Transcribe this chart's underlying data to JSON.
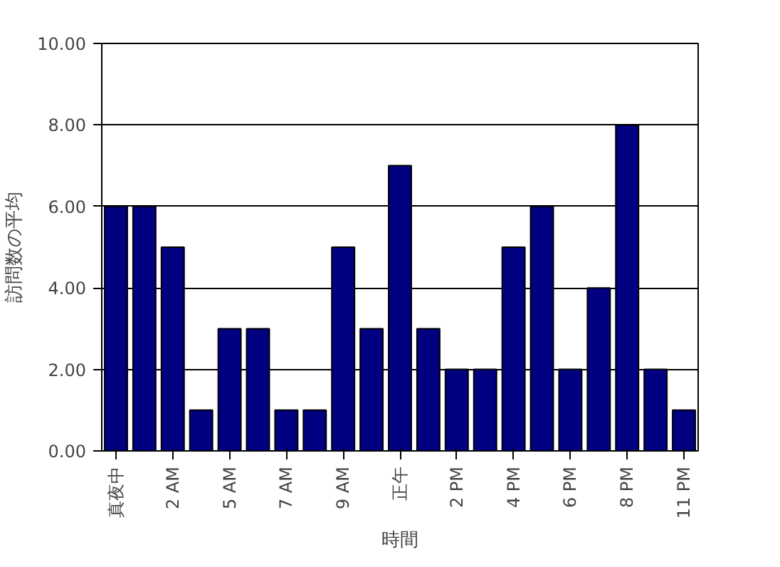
{
  "chart_data": {
    "type": "bar",
    "xlabel": "時間",
    "ylabel": "訪問数の平均",
    "categories": [
      "真夜中",
      null,
      "2 AM",
      null,
      "5 AM",
      null,
      "7 AM",
      null,
      "9 AM",
      null,
      "正午",
      null,
      "2 PM",
      null,
      "4 PM",
      null,
      "6 PM",
      null,
      "8 PM",
      null,
      "11 PM"
    ],
    "values": [
      6,
      6,
      5,
      1,
      3,
      3,
      1,
      1,
      5,
      3,
      7,
      3,
      2,
      2,
      5,
      6,
      2,
      4,
      8,
      2,
      1
    ],
    "color": "#000080",
    "ylim": [
      0,
      10
    ],
    "yticks": [
      {
        "value": 0,
        "label": "0.00"
      },
      {
        "value": 2,
        "label": "2.00"
      },
      {
        "value": 4,
        "label": "4.00"
      },
      {
        "value": 6,
        "label": "6.00"
      },
      {
        "value": 8,
        "label": "8.00"
      },
      {
        "value": 10,
        "label": "10.00"
      }
    ],
    "grid": "y"
  }
}
